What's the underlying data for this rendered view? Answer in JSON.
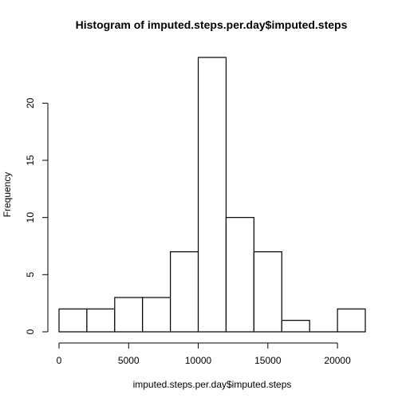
{
  "chart_data": {
    "type": "bar",
    "title": "Histogram of imputed.steps.per.day$imputed.steps",
    "xlabel": "imputed.steps.per.day$imputed.steps",
    "ylabel": "Frequency",
    "bin_edges": [
      0,
      2000,
      4000,
      6000,
      8000,
      10000,
      12000,
      14000,
      16000,
      18000,
      20000,
      22000
    ],
    "values": [
      2,
      2,
      3,
      3,
      7,
      24,
      10,
      7,
      1,
      0,
      2
    ],
    "xlim": [
      0,
      22000
    ],
    "ylim": [
      0,
      24
    ],
    "x_ticks": [
      0,
      5000,
      10000,
      15000,
      20000
    ],
    "x_tick_labels": [
      "0",
      "5000",
      "10000",
      "15000",
      "20000"
    ],
    "y_ticks": [
      0,
      5,
      10,
      15,
      20
    ],
    "y_tick_labels": [
      "0",
      "5",
      "10",
      "15",
      "20"
    ],
    "grid": false,
    "legend": "none",
    "bar_fill": "#ffffff",
    "bar_stroke": "#000000"
  }
}
